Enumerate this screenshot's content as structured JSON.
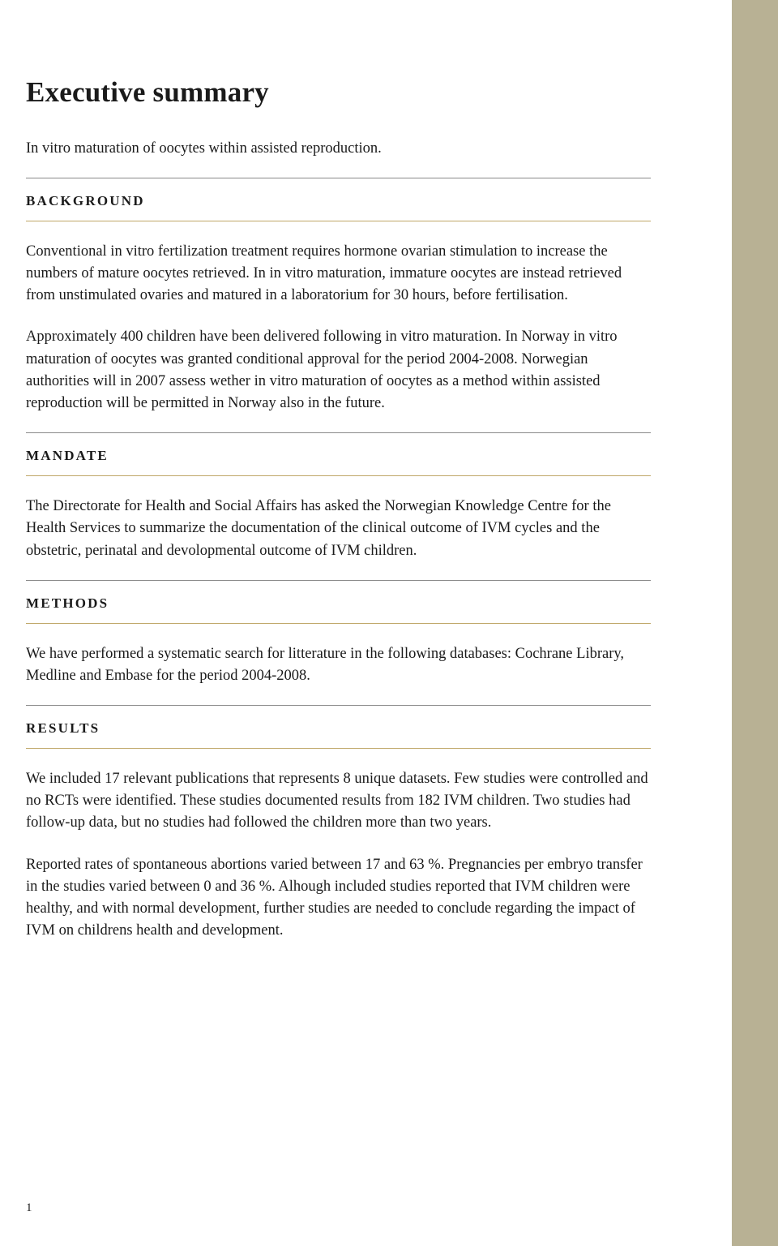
{
  "colors": {
    "sidebar": "#b8b194",
    "text": "#1a1a1a",
    "rule_top": "#8a8a8a",
    "rule_bottom_accent": "#bfa768",
    "background": "#ffffff"
  },
  "typography": {
    "title_fontsize": 35,
    "heading_fontsize": 17,
    "heading_letterspacing": 2.2,
    "body_fontsize": 18.5,
    "body_lineheight": 1.47,
    "font_family": "Georgia, serif"
  },
  "page_number": "1",
  "title": "Executive summary",
  "subtitle": "In vitro maturation of oocytes within assisted reproduction.",
  "sections": [
    {
      "heading": "BACKGROUND",
      "paragraphs": [
        "Conventional in vitro fertilization treatment requires hormone ovarian stimulation to increase the numbers of mature oocytes retrieved. In in vitro maturation, immature oocytes are instead retrieved from unstimulated ovaries and matured in a laboratorium for 30 hours, before fertilisation.",
        "Approximately 400 children have been delivered following in vitro maturation. In Norway in vitro maturation of oocytes was granted conditional approval for the period 2004-2008. Norwegian authorities will in 2007 assess wether in vitro maturation of oocytes as a method within assisted reproduction will be permitted in Norway also in the future."
      ]
    },
    {
      "heading": "MANDATE",
      "paragraphs": [
        "The Directorate for Health and Social Affairs has asked the Norwegian Knowledge Centre for the Health Services to summarize the documentation of the clinical outcome of IVM cycles and the obstetric, perinatal and devolopmental outcome of IVM children."
      ]
    },
    {
      "heading": "METHODS",
      "paragraphs": [
        "We have performed a systematic search for litterature in the following databases: Cochrane Library, Medline and Embase for the period 2004-2008."
      ]
    },
    {
      "heading": "RESULTS",
      "paragraphs": [
        "We included 17 relevant publications that represents 8 unique datasets.  Few studies were controlled and no RCTs were identified. These studies documented results from 182 IVM children. Two studies had follow-up data, but no studies had followed the children more than two years.",
        "Reported rates of spontaneous abortions varied between 17 and 63 %. Pregnancies per embryo transfer in the studies varied between 0 and 36 %. Alhough included studies reported that IVM children were healthy, and with normal development, further studies are needed to conclude regarding the impact of IVM on childrens health and development."
      ]
    }
  ]
}
